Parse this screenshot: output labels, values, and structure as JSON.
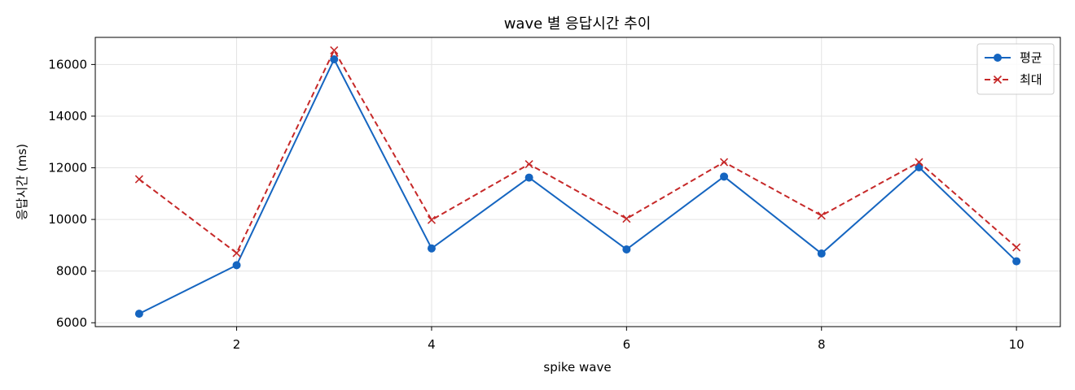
{
  "chart_data": {
    "type": "line",
    "title": "wave 별 응답시간 추이",
    "xlabel": "spike wave",
    "ylabel": "응답시간 (ms)",
    "x": [
      1,
      2,
      3,
      4,
      5,
      6,
      7,
      8,
      9,
      10
    ],
    "xlim": [
      0.55,
      10.45
    ],
    "ylim": [
      5850,
      17050
    ],
    "xticks": [
      2,
      4,
      6,
      8,
      10
    ],
    "yticks": [
      6000,
      8000,
      10000,
      12000,
      14000,
      16000
    ],
    "grid": true,
    "legend_position": "top-right",
    "series": [
      {
        "name": "평균",
        "color": "#1565c0",
        "line_style": "solid",
        "marker": "circle",
        "values": [
          6350,
          8230,
          16200,
          8880,
          11620,
          8840,
          11660,
          8680,
          12020,
          8380
        ]
      },
      {
        "name": "최대",
        "color": "#c62828",
        "line_style": "dashed",
        "marker": "x",
        "values": [
          11560,
          8700,
          16550,
          9980,
          12140,
          10030,
          12220,
          10150,
          12220,
          8920
        ]
      }
    ]
  }
}
